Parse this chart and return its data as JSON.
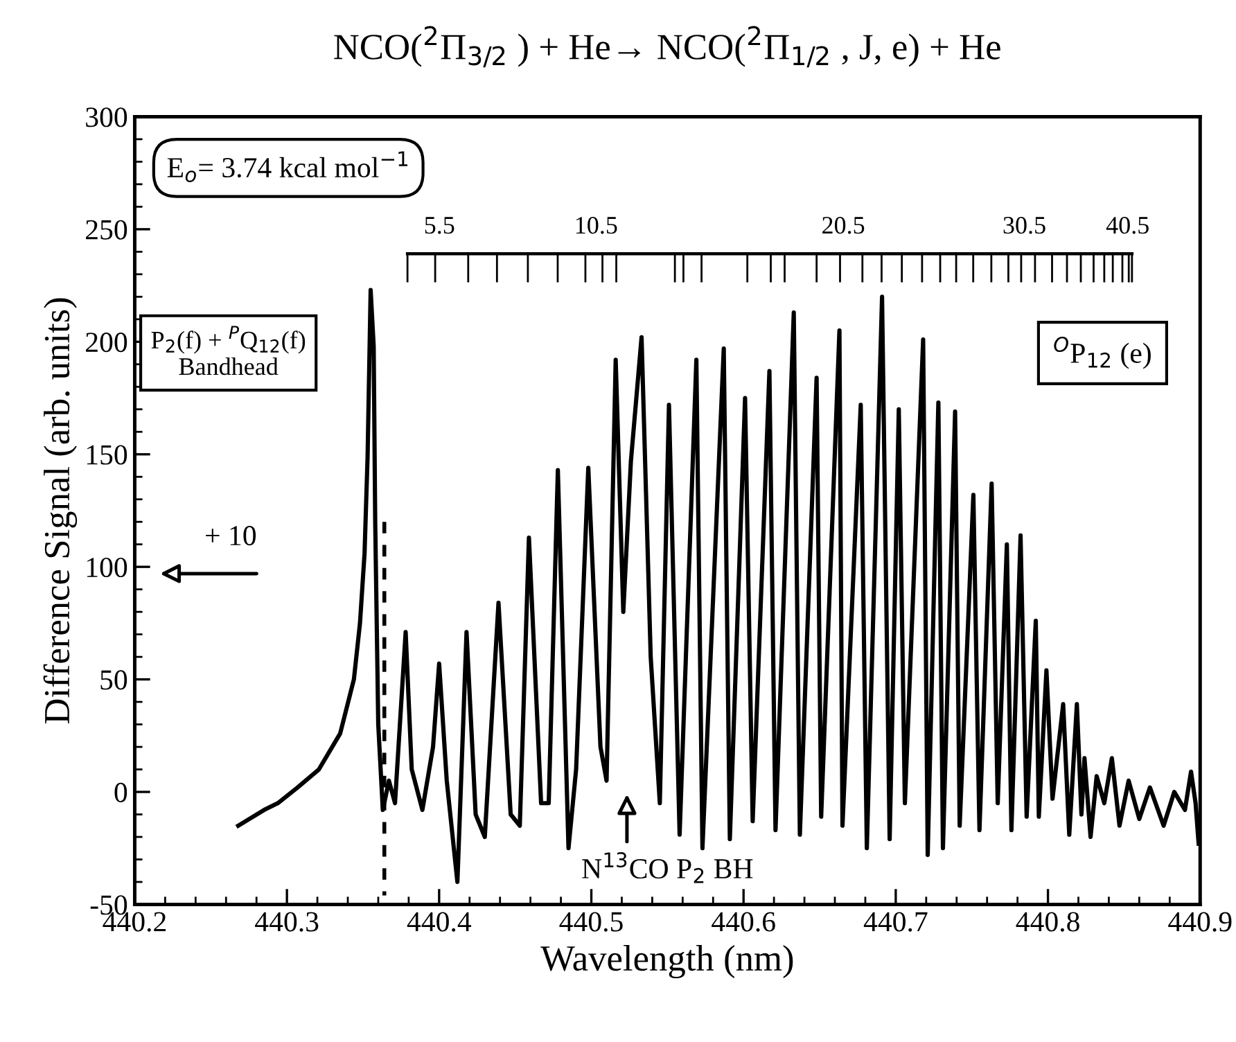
{
  "chart_data": {
    "type": "line",
    "title": "NCO($^{2}$Π$_{3/2}$ ) + He→ NCO($^{2}$Π$_{1/2}$ , J, e) + He",
    "xlabel": "Wavelength (nm)",
    "ylabel": "Difference Signal (arb. units)",
    "xlim": [
      440.2,
      440.9
    ],
    "ylim": [
      -50,
      300
    ],
    "xticks": [
      440.2,
      {
        "value": 440.22,
        "label": null
      },
      {
        "value": 440.24,
        "label": null
      },
      {
        "value": 440.26,
        "label": null
      },
      {
        "value": 440.28,
        "label": null
      },
      440.3,
      {
        "value": 440.32,
        "label": null
      },
      {
        "value": 440.34,
        "label": null
      },
      {
        "value": 440.36,
        "label": null
      },
      {
        "value": 440.38,
        "label": null
      },
      440.4,
      {
        "value": 440.42,
        "label": null
      },
      {
        "value": 440.44,
        "label": null
      },
      {
        "value": 440.46,
        "label": null
      },
      {
        "value": 440.48,
        "label": null
      },
      440.5,
      {
        "value": 440.52,
        "label": null
      },
      {
        "value": 440.54,
        "label": null
      },
      {
        "value": 440.56,
        "label": null
      },
      {
        "value": 440.58,
        "label": null
      },
      440.6,
      {
        "value": 440.62,
        "label": null
      },
      {
        "value": 440.64,
        "label": null
      },
      {
        "value": 440.66,
        "label": null
      },
      {
        "value": 440.68,
        "label": null
      },
      440.7,
      {
        "value": 440.72,
        "label": null
      },
      {
        "value": 440.74,
        "label": null
      },
      {
        "value": 440.76,
        "label": null
      },
      {
        "value": 440.78,
        "label": null
      },
      440.8,
      {
        "value": 440.82,
        "label": null
      },
      {
        "value": 440.84,
        "label": null
      },
      {
        "value": 440.86,
        "label": null
      },
      {
        "value": 440.88,
        "label": null
      },
      440.9
    ],
    "yticks": [
      -50,
      {
        "value": -40,
        "label": null
      },
      {
        "value": -30,
        "label": null
      },
      {
        "value": -20,
        "label": null
      },
      {
        "value": -10,
        "label": null
      },
      0,
      {
        "value": 10,
        "label": null
      },
      {
        "value": 20,
        "label": null
      },
      {
        "value": 30,
        "label": null
      },
      {
        "value": 40,
        "label": null
      },
      50,
      {
        "value": 60,
        "label": null
      },
      {
        "value": 70,
        "label": null
      },
      {
        "value": 80,
        "label": null
      },
      {
        "value": 90,
        "label": null
      },
      100,
      {
        "value": 110,
        "label": null
      },
      {
        "value": 120,
        "label": null
      },
      {
        "value": 130,
        "label": null
      },
      {
        "value": 140,
        "label": null
      },
      150,
      {
        "value": 160,
        "label": null
      },
      {
        "value": 170,
        "label": null
      },
      {
        "value": 180,
        "label": null
      },
      {
        "value": 190,
        "label": null
      },
      200,
      {
        "value": 210,
        "label": null
      },
      {
        "value": 220,
        "label": null
      },
      {
        "value": 230,
        "label": null
      },
      {
        "value": 240,
        "label": null
      },
      250,
      {
        "value": 260,
        "label": null
      },
      {
        "value": 270,
        "label": null
      },
      {
        "value": 280,
        "label": null
      },
      {
        "value": 290,
        "label": null
      },
      300
    ],
    "grid": false,
    "legend": false,
    "marker": "none",
    "series": [
      {
        "color": "#000000",
        "line_style": "solid",
        "x": [
          440.268,
          440.285,
          440.294,
          440.307,
          440.321,
          440.335,
          440.344,
          440.348,
          440.351,
          440.353,
          440.355,
          440.357,
          440.358,
          440.36,
          440.363,
          440.367,
          440.371,
          440.378,
          440.382,
          440.389,
          440.396,
          440.4,
          440.405,
          440.412,
          440.418,
          440.424,
          440.43,
          440.439,
          440.447,
          440.453,
          440.459,
          440.467,
          440.472,
          440.478,
          440.485,
          440.49,
          440.498,
          440.506,
          440.51,
          440.516,
          440.521,
          440.526,
          440.533,
          440.539,
          440.545,
          440.551,
          440.558,
          440.569,
          440.573,
          440.587,
          440.591,
          440.601,
          440.606,
          440.617,
          440.621,
          440.633,
          440.637,
          440.648,
          440.651,
          440.663,
          440.665,
          440.677,
          440.681,
          440.691,
          440.696,
          440.702,
          440.706,
          440.718,
          440.721,
          440.728,
          440.731,
          440.739,
          440.742,
          440.751,
          440.755,
          440.763,
          440.767,
          440.773,
          440.776,
          440.782,
          440.786,
          440.792,
          440.794,
          440.799,
          440.803,
          440.81,
          440.814,
          440.819,
          440.822,
          440.824,
          440.828,
          440.832,
          440.837,
          440.842,
          440.847,
          440.853,
          440.86,
          440.867,
          440.876,
          440.883,
          440.89,
          440.894,
          440.897,
          440.899
        ],
        "values": [
          -15,
          -8,
          -5,
          2,
          10,
          26,
          50,
          75,
          106,
          149,
          223,
          198,
          120,
          30,
          -8,
          5,
          -5,
          71,
          10,
          -8,
          20,
          57,
          5,
          -40,
          71,
          -10,
          -20,
          84,
          -10,
          -15,
          113,
          -5,
          -5,
          143,
          -25,
          10,
          144,
          20,
          5,
          192,
          80,
          147,
          202,
          60,
          -5,
          172,
          -19,
          192,
          -25,
          197,
          -21,
          175,
          -13,
          187,
          -17,
          213,
          -19,
          184,
          -11,
          205,
          -15,
          172,
          -25,
          220,
          -21,
          170,
          -5,
          201,
          -28,
          173,
          -25,
          169,
          -15,
          132,
          -17,
          137,
          -5,
          110,
          -17,
          114,
          -11,
          76,
          -11,
          54,
          -3,
          39,
          -19,
          39,
          -10,
          15,
          -20,
          7,
          -5,
          15,
          -15,
          5,
          -12,
          2,
          -15,
          0,
          -8,
          9,
          -5,
          -23
        ]
      },
      {
        "color": "#000000",
        "line_style": "dashed",
        "x": [
          440.364,
          440.364
        ],
        "values": [
          120,
          -46
        ]
      }
    ],
    "annotations": [
      "E$_{o}$= 3.74 kcal mol$^{−1}$",
      "P$_{2}$(f) + $^{P}$Q$_{12}$(f)\nBandhead",
      "+ 10",
      "$^{O}$P$_{12}$ (e)",
      "N$^{13}$CO P$_{2}$ BH",
      "5.5",
      "10.5",
      "20.5",
      "30.5",
      "40.5"
    ]
  }
}
